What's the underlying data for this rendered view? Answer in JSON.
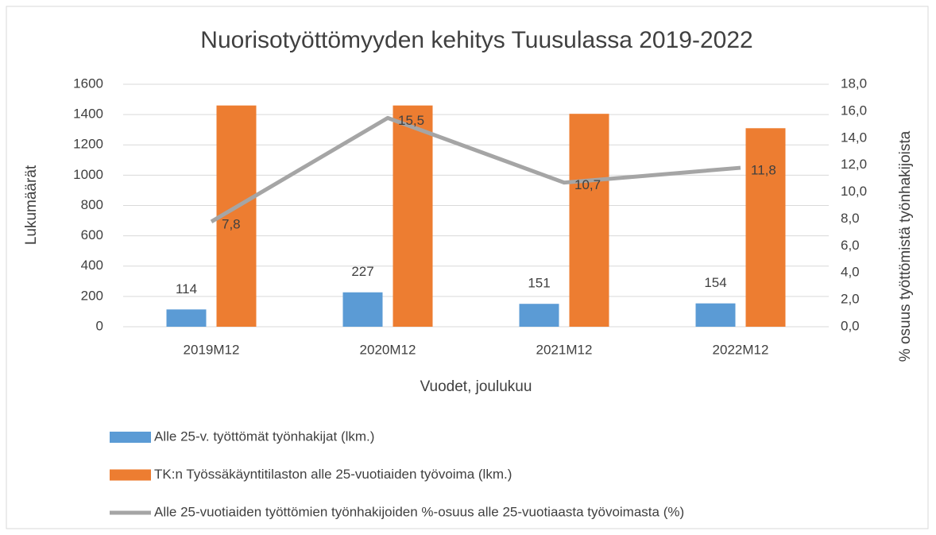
{
  "chart_data": {
    "type": "bar_line",
    "title": "Nuorisotyöttömyyden kehitys Tuusulassa 2019-2022",
    "xlabel": "Vuodet, joulukuu",
    "ylabel": "Lukumäärät",
    "y2label": "% osuus työttömistä työnhakijoista",
    "categories": [
      "2019M12",
      "2020M12",
      "2021M12",
      "2022M12"
    ],
    "series": [
      {
        "name": "Alle 25-v. työttömät työnhakijat (lkm.)",
        "type": "bar",
        "color": "#5b9bd5",
        "values": [
          114,
          227,
          151,
          154
        ]
      },
      {
        "name": "TK:n Työssäkäyntitilaston alle 25-vuotiaiden työvoima (lkm.)",
        "type": "bar",
        "color": "#ed7d31",
        "values": [
          1460,
          1460,
          1405,
          1310
        ]
      },
      {
        "name": "Alle 25-vuotiaiden työttömien työnhakijoiden %-osuus alle 25-vuotiaasta työvoimasta (%)",
        "type": "line",
        "axis": "y2",
        "color": "#a5a5a5",
        "values": [
          7.8,
          15.5,
          10.7,
          11.8
        ],
        "value_labels": [
          "7,8",
          "15,5",
          "10,7",
          "11,8"
        ]
      }
    ],
    "ylim": [
      0,
      1600
    ],
    "yticks": [
      0,
      200,
      400,
      600,
      800,
      1000,
      1200,
      1400,
      1600
    ],
    "y2lim": [
      0,
      18
    ],
    "y2ticks": [
      {
        "value": 0,
        "label": "0,0"
      },
      {
        "value": 2,
        "label": "2,0"
      },
      {
        "value": 4,
        "label": "4,0"
      },
      {
        "value": 6,
        "label": "6,0"
      },
      {
        "value": 8,
        "label": "8,0"
      },
      {
        "value": 10,
        "label": "10,0"
      },
      {
        "value": 12,
        "label": "12,0"
      },
      {
        "value": 14,
        "label": "14,0"
      },
      {
        "value": 16,
        "label": "16,0"
      },
      {
        "value": 18,
        "label": "18,0"
      }
    ],
    "grid": true
  }
}
